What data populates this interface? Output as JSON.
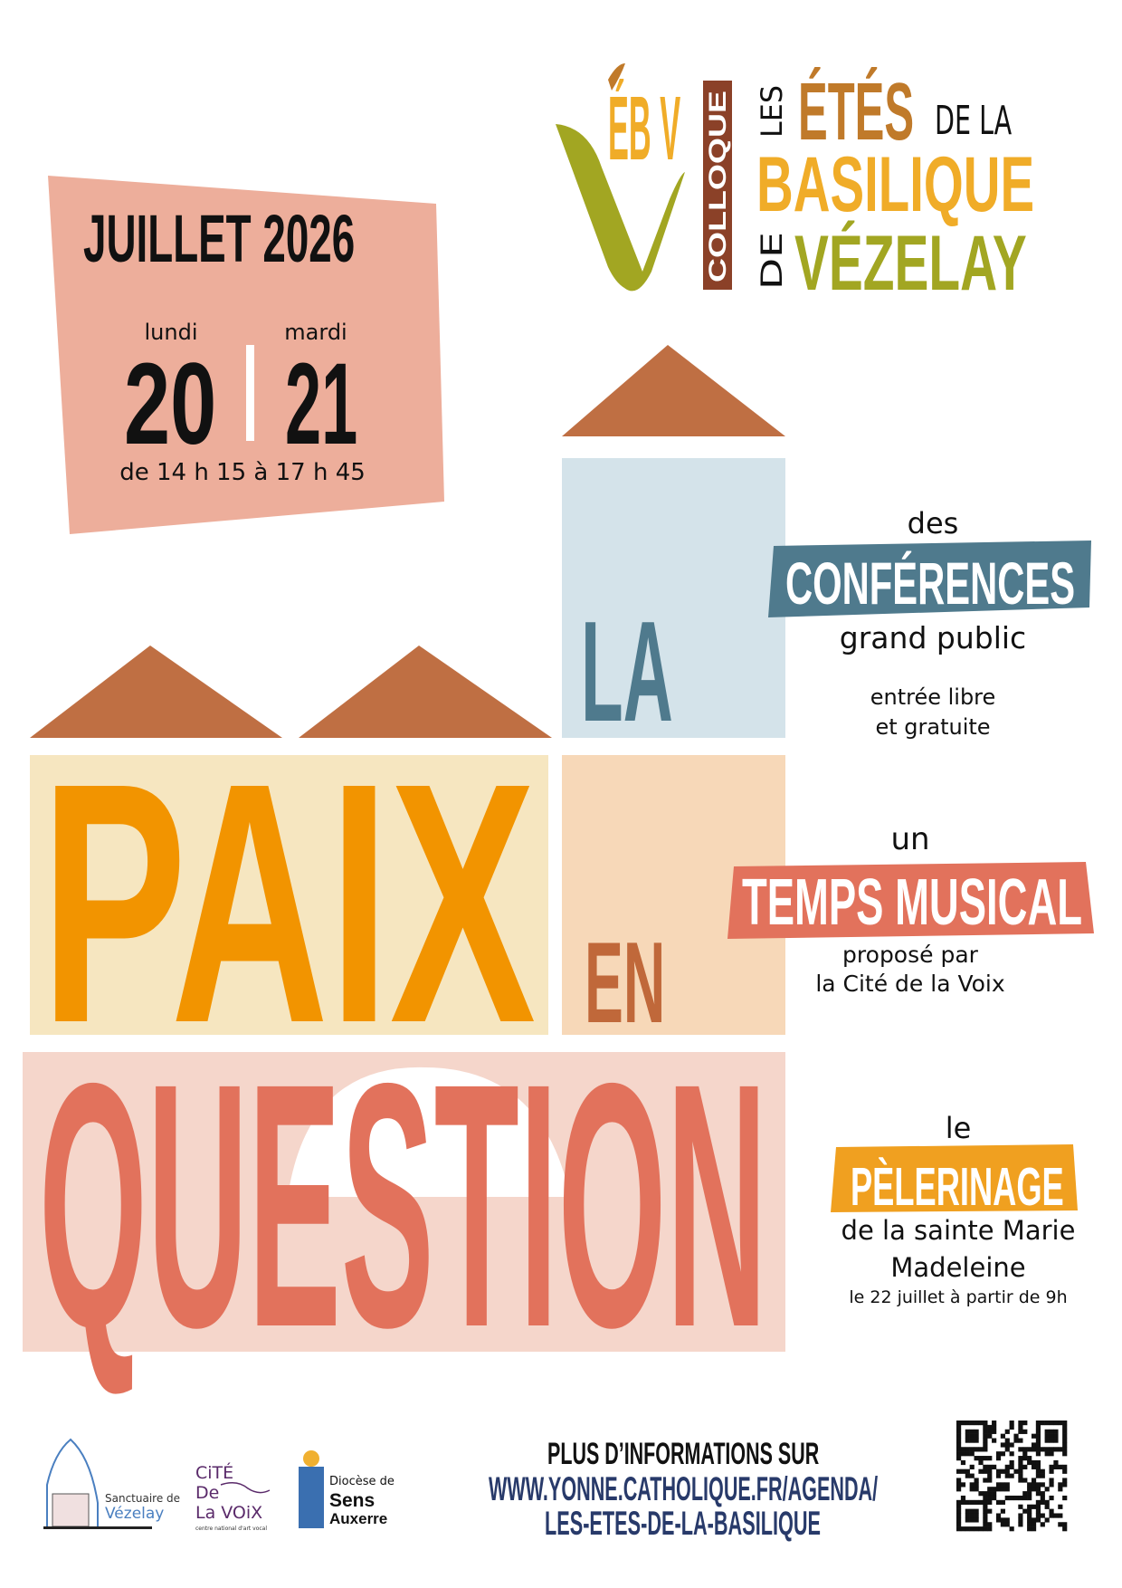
{
  "logo": {
    "colloque": "COLLOQUE",
    "les": "LES",
    "etes": "ÉTÉS",
    "de_la": "DE LA",
    "basilique": "BASILIQUE",
    "de": "DE",
    "vezelay": "VÉZELAY",
    "mark": "ÉB V"
  },
  "dates": {
    "month": "JUILLET 2026",
    "day1_name": "lundi",
    "day1_num": "20",
    "day2_name": "mardi",
    "day2_num": "21",
    "hours": "de 14 h 15 à 17 h 45"
  },
  "title": {
    "word1": "LA",
    "word2": "PAIX",
    "word3": "EN",
    "word4": "QUESTION"
  },
  "conferences": {
    "pre": "des",
    "banner": "CONFÉRENCES",
    "line1": "grand public",
    "note1": "entrée libre",
    "note2": "et gratuite"
  },
  "music": {
    "pre": "un",
    "banner": "TEMPS MUSICAL",
    "line1": "proposé par",
    "line2": "la Cité de la Voix"
  },
  "pilgrimage": {
    "pre": "le",
    "banner": "PÈLERINAGE",
    "line1": "de la sainte Marie",
    "line2": "Madeleine",
    "line3": "le 22 juillet à partir de 9h"
  },
  "footer": {
    "info": "PLUS D’INFORMATIONS SUR",
    "url1": "WWW.YONNE.CATHOLIQUE.FR/AGENDA/",
    "url2": "LES-ETES-DE-LA-BASILIQUE",
    "partners": {
      "sanctuaire_1": "Sanctuaire de",
      "sanctuaire_2": "Vézelay",
      "cite_1": "CiTÉ",
      "cite_2": "De",
      "cite_3": "La VOiX",
      "cite_sub": "centre national d'art vocal",
      "diocese_1": "Diocèse de",
      "diocese_2": "Sens",
      "diocese_3": "Auxerre"
    },
    "qr_icon": "qr-code-icon"
  },
  "colors": {
    "olive": "#a2a622",
    "amber": "#f0ac28",
    "brown": "#8b4128",
    "ochre": "#c07a2a",
    "roof": "#bf6f43",
    "date_box": "#edae9b",
    "la_box": "#d4e3ea",
    "paix_box": "#f6e6c0",
    "en_box": "#f7d8b8",
    "question_box": "#f5d6cb",
    "orange": "#f29400",
    "slate": "#4f7a8d",
    "coral": "#e2725c",
    "navy": "#283a6a"
  }
}
